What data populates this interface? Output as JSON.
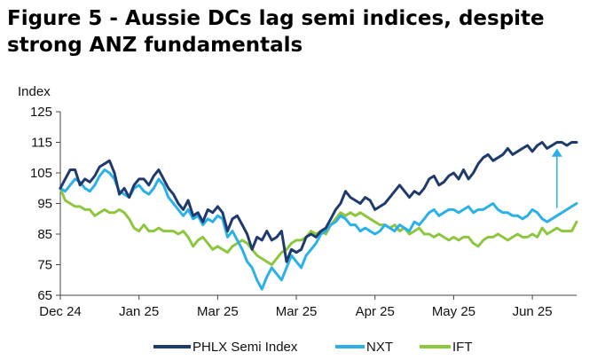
{
  "title_line1": "Figure 5 - Aussie DCs lag semi indices, despite",
  "title_line2": "strong ANZ fundamentals",
  "chart_data": {
    "type": "line",
    "ylabel": "Index",
    "ylim": [
      65,
      125
    ],
    "yticks": [
      65,
      75,
      85,
      95,
      105,
      115,
      125
    ],
    "x_tick_labels": [
      "Dec 24",
      "Jan 25",
      "Mar 25",
      "Mar 25",
      "Apr 25",
      "May 25",
      "Jun 25"
    ],
    "x_tick_positions": [
      0,
      16,
      32,
      48,
      64,
      80,
      96
    ],
    "x_range": [
      0,
      105
    ],
    "legend_position": "bottom",
    "annotation": "up-arrow",
    "series": [
      {
        "name": "PHLX Semi Index",
        "color": "#1f3a6e",
        "x": [
          0,
          1,
          2,
          3,
          4,
          5,
          6,
          7,
          8,
          9,
          10,
          11,
          12,
          13,
          14,
          15,
          16,
          17,
          18,
          19,
          20,
          21,
          22,
          23,
          24,
          25,
          26,
          27,
          28,
          29,
          30,
          31,
          32,
          33,
          34,
          35,
          36,
          37,
          38,
          39,
          40,
          41,
          42,
          43,
          44,
          45,
          46,
          47,
          48,
          49,
          50,
          51,
          52,
          53,
          54,
          55,
          56,
          57,
          58,
          59,
          60,
          61,
          62,
          63,
          64,
          65,
          66,
          67,
          68,
          69,
          70,
          71,
          72,
          73,
          74,
          75,
          76,
          77,
          78,
          79,
          80,
          81,
          82,
          83,
          84,
          85,
          86,
          87,
          88,
          89,
          90,
          91,
          92,
          93,
          94,
          95,
          96,
          97,
          98,
          99,
          100,
          101,
          102,
          103,
          104,
          105
        ],
        "values": [
          100,
          103,
          106,
          106,
          101,
          103,
          102,
          104,
          107,
          108,
          109,
          105,
          98,
          100,
          97,
          101,
          103,
          103,
          101,
          104,
          106,
          103,
          100,
          98,
          95,
          93,
          96,
          91,
          92,
          89,
          93,
          92,
          94,
          92,
          86,
          90,
          91,
          88,
          85,
          80,
          84,
          83,
          86,
          83,
          84,
          86,
          76,
          80,
          79,
          80,
          84,
          85,
          84,
          86,
          87,
          90,
          93,
          95,
          99,
          97,
          96,
          95,
          97,
          96,
          93,
          94,
          95,
          97,
          99,
          101,
          99,
          97,
          99,
          98,
          100,
          103,
          104,
          101,
          102,
          104,
          105,
          103,
          106,
          103,
          105,
          108,
          110,
          111,
          109,
          110,
          111,
          113,
          111,
          112,
          113,
          114,
          112,
          114,
          115,
          113,
          114,
          115,
          115,
          114,
          115,
          115
        ]
      },
      {
        "name": "NXT",
        "color": "#2bb1e8",
        "x": [
          0,
          1,
          2,
          3,
          4,
          5,
          6,
          7,
          8,
          9,
          10,
          11,
          12,
          13,
          14,
          15,
          16,
          17,
          18,
          19,
          20,
          21,
          22,
          23,
          24,
          25,
          26,
          27,
          28,
          29,
          30,
          31,
          32,
          33,
          34,
          35,
          36,
          37,
          38,
          39,
          40,
          41,
          42,
          43,
          44,
          45,
          46,
          47,
          48,
          49,
          50,
          51,
          52,
          53,
          54,
          55,
          56,
          57,
          58,
          59,
          60,
          61,
          62,
          63,
          64,
          65,
          66,
          67,
          68,
          69,
          70,
          71,
          72,
          73,
          74,
          75,
          76,
          77,
          78,
          79,
          80,
          81,
          82,
          83,
          84,
          85,
          86,
          87,
          88,
          89,
          90,
          91,
          92,
          93,
          94,
          95,
          96,
          97,
          98,
          99,
          100,
          101,
          102,
          103,
          104,
          105
        ],
        "values": [
          100,
          99,
          101,
          103,
          102,
          100,
          99,
          101,
          104,
          106,
          105,
          103,
          99,
          98,
          97,
          100,
          101,
          99,
          98,
          100,
          103,
          101,
          97,
          95,
          93,
          91,
          93,
          90,
          91,
          88,
          90,
          89,
          91,
          90,
          84,
          86,
          83,
          80,
          76,
          74,
          70,
          67,
          71,
          74,
          72,
          70,
          74,
          78,
          76,
          74,
          78,
          80,
          82,
          85,
          86,
          88,
          89,
          91,
          90,
          88,
          88,
          86,
          87,
          86,
          85,
          86,
          88,
          87,
          86,
          88,
          87,
          86,
          89,
          88,
          90,
          92,
          93,
          91,
          92,
          93,
          93,
          92,
          93,
          94,
          92,
          93,
          93,
          94,
          95,
          93,
          92,
          92,
          91,
          91,
          90,
          91,
          93,
          92,
          90,
          89,
          90,
          91,
          92,
          93,
          94,
          95
        ]
      },
      {
        "name": "IFT",
        "color": "#8dc63f",
        "x": [
          0,
          1,
          2,
          3,
          4,
          5,
          6,
          7,
          8,
          9,
          10,
          11,
          12,
          13,
          14,
          15,
          16,
          17,
          18,
          19,
          20,
          21,
          22,
          23,
          24,
          25,
          26,
          27,
          28,
          29,
          30,
          31,
          32,
          33,
          34,
          35,
          36,
          37,
          38,
          39,
          40,
          41,
          42,
          43,
          44,
          45,
          46,
          47,
          48,
          49,
          50,
          51,
          52,
          53,
          54,
          55,
          56,
          57,
          58,
          59,
          60,
          61,
          62,
          63,
          64,
          65,
          66,
          67,
          68,
          69,
          70,
          71,
          72,
          73,
          74,
          75,
          76,
          77,
          78,
          79,
          80,
          81,
          82,
          83,
          84,
          85,
          86,
          87,
          88,
          89,
          90,
          91,
          92,
          93,
          94,
          95,
          96,
          97,
          98,
          99,
          100,
          101,
          102,
          103,
          104,
          105
        ],
        "values": [
          100,
          96,
          95,
          94,
          94,
          93,
          93,
          91,
          92,
          93,
          92,
          92,
          93,
          92,
          90,
          87,
          86,
          88,
          86,
          86,
          87,
          86,
          86,
          86,
          85,
          86,
          84,
          81,
          83,
          84,
          82,
          80,
          81,
          80,
          79,
          81,
          82,
          83,
          82,
          80,
          78,
          77,
          76,
          75,
          77,
          79,
          80,
          82,
          83,
          83,
          84,
          86,
          85,
          86,
          85,
          88,
          90,
          92,
          91,
          92,
          91,
          92,
          91,
          90,
          89,
          88,
          88,
          87,
          88,
          86,
          87,
          85,
          86,
          87,
          85,
          85,
          84,
          85,
          84,
          83,
          84,
          83,
          84,
          84,
          82,
          81,
          83,
          84,
          84,
          85,
          84,
          83,
          84,
          85,
          84,
          84,
          85,
          84,
          87,
          85,
          86,
          87,
          86,
          86,
          86,
          89
        ]
      }
    ]
  }
}
